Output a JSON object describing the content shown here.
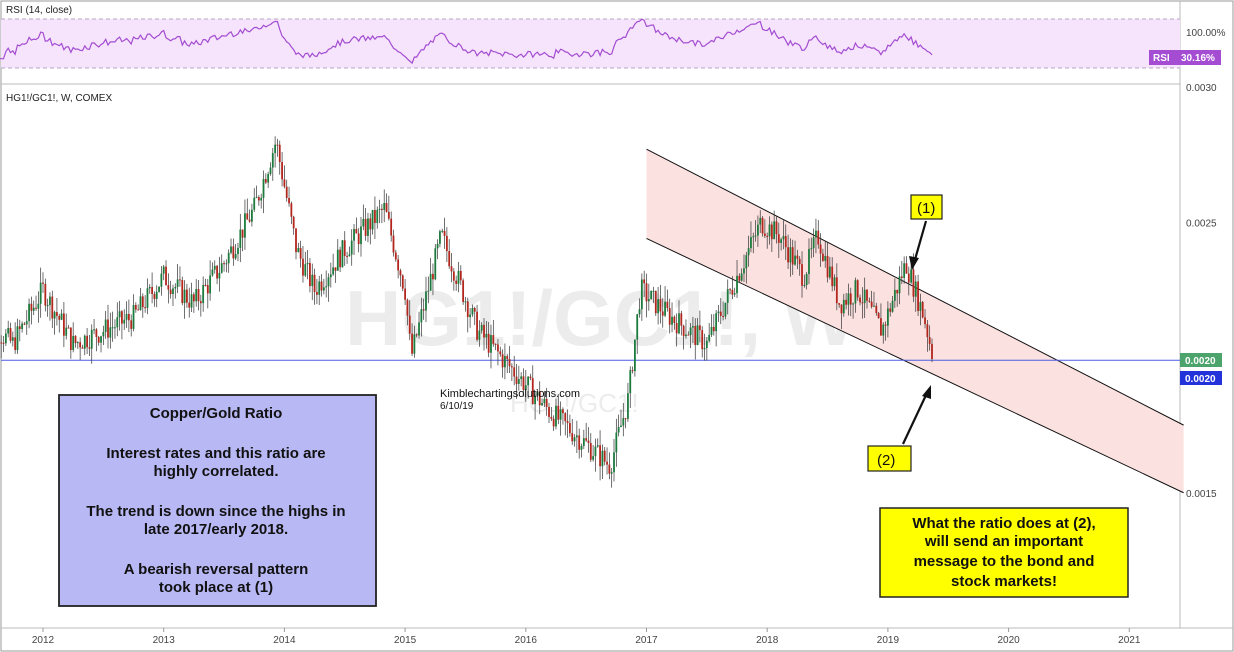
{
  "chart_data": [
    {
      "type": "line",
      "panel": "rsi",
      "title": "RSI (14, close)",
      "badge_label": "RSI",
      "current_value": "30.16%",
      "axis_tick_label": "100.00%",
      "color": "#a44cd2"
    },
    {
      "type": "candlestick",
      "panel": "price",
      "title": "HG1!/GC1!, W, COMEX",
      "watermark_text": "HG1!/GC1!, W",
      "watermark_sub": "HG1!/GC1!",
      "source_text": "Kimblechartingsolutions.com",
      "date_text": "6/10/19",
      "x_tick_labels": [
        "2012",
        "2013",
        "2014",
        "2015",
        "2016",
        "2017",
        "2018",
        "2019",
        "2020",
        "2021"
      ],
      "y_tick_labels": [
        "0.0030",
        "0.0025",
        "0.0015"
      ],
      "ylim": [
        0.001,
        0.003
      ],
      "last_price_label": "0.0020",
      "support_level_label": "0.0020",
      "support_level": 0.00199,
      "x": [
        2011.5,
        2011.75,
        2012.0,
        2012.25,
        2012.5,
        2012.75,
        2013.0,
        2013.25,
        2013.5,
        2013.75,
        2013.93,
        2014.1,
        2014.25,
        2014.5,
        2014.83,
        2015.0,
        2015.05,
        2015.3,
        2015.6,
        2015.9,
        2016.2,
        2016.45,
        2016.7,
        2016.85,
        2016.95,
        2017.2,
        2017.5,
        2017.75,
        2017.95,
        2018.1,
        2018.3,
        2018.42,
        2018.6,
        2018.75,
        2018.95,
        2019.15,
        2019.3,
        2019.38
      ],
      "values": [
        0.00215,
        0.00205,
        0.00225,
        0.00205,
        0.0021,
        0.00215,
        0.0023,
        0.0022,
        0.00235,
        0.00255,
        0.0028,
        0.0024,
        0.00225,
        0.0024,
        0.00255,
        0.00225,
        0.002,
        0.00245,
        0.0021,
        0.00195,
        0.0018,
        0.0017,
        0.0016,
        0.00185,
        0.00225,
        0.00215,
        0.00205,
        0.0023,
        0.0025,
        0.00245,
        0.0023,
        0.00245,
        0.0022,
        0.00225,
        0.0021,
        0.00235,
        0.00215,
        0.00199
      ],
      "channel": {
        "upper": {
          "start": [
            2017.0,
            0.00277
          ],
          "end": [
            2021.45,
            0.00175
          ]
        },
        "lower": {
          "start": [
            2017.0,
            0.00244
          ],
          "end": [
            2021.45,
            0.0015
          ]
        }
      },
      "annotations": [
        {
          "label": "(1)",
          "x": 2019.28,
          "y": 0.00235
        },
        {
          "label": "(2)",
          "x": 2019.41,
          "y": 0.00198
        }
      ]
    }
  ],
  "info_box": {
    "title": "Copper/Gold Ratio",
    "lines": [
      "Interest rates and this ratio are",
      "highly correlated.",
      "",
      "The trend is down since the highs in",
      "late 2017/early 2018.",
      "",
      "A bearish reversal pattern",
      "took place at (1)"
    ]
  },
  "note_box": {
    "lines": [
      "What the ratio does at (2),",
      "will send an important",
      "message to the bond and",
      "stock markets!"
    ]
  },
  "colors": {
    "up": "#1b7a3c",
    "down": "#b2261d",
    "channel_fill": "#fbe1e0",
    "rsi_band": "#f5e4fb",
    "support_line": "#4d5de6",
    "info_box_bg": "#b8b8f5",
    "note_box_bg": "#ffff00",
    "last_price_tag": "#4ca36b",
    "support_tag": "#2433d9"
  }
}
